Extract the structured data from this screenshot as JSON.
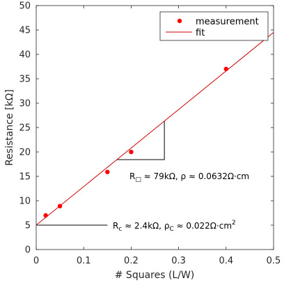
{
  "chart_data": {
    "type": "scatter",
    "xlabel": "# Squares (L/W)",
    "ylabel": "Resistance [kΩ]",
    "xlim": [
      0,
      0.5
    ],
    "ylim": [
      0,
      50
    ],
    "x_ticks": [
      "0",
      "0.1",
      "0.2",
      "0.3",
      "0.4",
      "0.5"
    ],
    "y_ticks": [
      "0",
      "5",
      "10",
      "15",
      "20",
      "25",
      "30",
      "35",
      "40",
      "45",
      "50"
    ],
    "grid": false,
    "legend_position": "top-right",
    "series": [
      {
        "name": "measurement",
        "kind": "markers",
        "color": "#ff0000",
        "points": [
          {
            "x": 0.02,
            "y": 7.0
          },
          {
            "x": 0.05,
            "y": 8.9
          },
          {
            "x": 0.15,
            "y": 15.9
          },
          {
            "x": 0.2,
            "y": 20.0
          },
          {
            "x": 0.4,
            "y": 37.0
          }
        ]
      },
      {
        "name": "fit",
        "kind": "line",
        "color": "#cc0000",
        "intercept": 5.0,
        "slope": 79
      }
    ],
    "annotations": {
      "sheet": {
        "prefix": "R",
        "sub": "□",
        "text": " ≈ 79kΩ, ρ ≈ 0.0632Ω·cm"
      },
      "contact": {
        "prefix": "R",
        "sub": "c",
        "mid": " ≈ 2.4kΩ,   ρ",
        "sub2": "C",
        "text": " ≈ 0.022Ω·cm",
        "sup": "2"
      }
    },
    "guides": {
      "slope_triangle_x": [
        0.17,
        0.27
      ],
      "contact_line_x_end": 0.15,
      "contact_line_y": 5.0
    }
  }
}
